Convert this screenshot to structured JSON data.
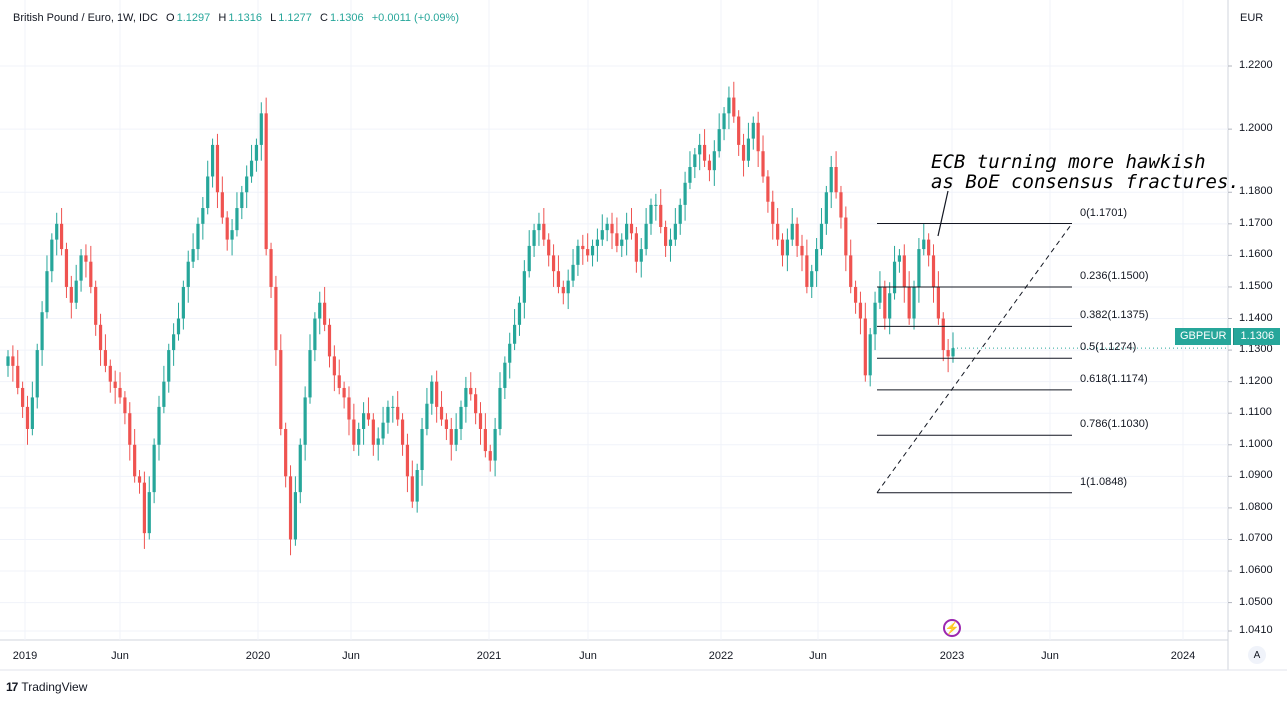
{
  "legend": {
    "symbol_line": "British Pound / Euro, 1W, IDC",
    "open_label": "O",
    "open": "1.1297",
    "high_label": "H",
    "high": "1.1316",
    "low_label": "L",
    "low": "1.1277",
    "close_label": "C",
    "close": "1.1306",
    "change": "+0.0011 (+0.09%)"
  },
  "currency": "EUR",
  "annotation": {
    "line1": "ECB turning more hawkish",
    "line2": "as BoE consensus fractures."
  },
  "price_badge": {
    "symbol": "GBPEUR",
    "price": "1.1306"
  },
  "brand": "TradingView",
  "auto_label": "A",
  "colors": {
    "up": "#26a69a",
    "down": "#ef5350",
    "event": "#9c27b0"
  },
  "icons": {
    "event": "lightning-bolt-icon",
    "brand": "tradingview-logo-icon"
  },
  "chart_data": {
    "type": "candlestick",
    "title": "British Pound / Euro, 1W, IDC",
    "ylabel": "EUR",
    "ylim": [
      1.038,
      1.225
    ],
    "y_ticks": [
      "1.2200",
      "1.2000",
      "1.1800",
      "1.1700",
      "1.1600",
      "1.1500",
      "1.1400",
      "1.1300",
      "1.1200",
      "1.1100",
      "1.1000",
      "1.0900",
      "1.0800",
      "1.0700",
      "1.0600",
      "1.0500",
      "1.0410"
    ],
    "x_ticks": [
      "2019",
      "Jun",
      "2020",
      "Jun",
      "2021",
      "Jun",
      "2022",
      "Jun",
      "2023",
      "Jun",
      "2024"
    ],
    "last": {
      "open": 1.1297,
      "high": 1.1316,
      "low": 1.1277,
      "close": 1.1306
    },
    "fibonacci": [
      {
        "label": "0(1.1701)",
        "price": 1.1701
      },
      {
        "label": "0.236(1.1500)",
        "price": 1.15
      },
      {
        "label": "0.382(1.1375)",
        "price": 1.1375
      },
      {
        "label": "0.5(1.1274)",
        "price": 1.1274
      },
      {
        "label": "0.618(1.1174)",
        "price": 1.1174
      },
      {
        "label": "0.786(1.1030)",
        "price": 1.103
      },
      {
        "label": "1(1.0848)",
        "price": 1.0848
      }
    ],
    "price_path": [
      1.128,
      1.125,
      1.118,
      1.112,
      1.105,
      1.115,
      1.13,
      1.142,
      1.155,
      1.165,
      1.17,
      1.162,
      1.15,
      1.145,
      1.152,
      1.16,
      1.158,
      1.15,
      1.138,
      1.13,
      1.125,
      1.12,
      1.118,
      1.115,
      1.11,
      1.1,
      1.09,
      1.088,
      1.072,
      1.085,
      1.1,
      1.112,
      1.12,
      1.13,
      1.135,
      1.14,
      1.15,
      1.158,
      1.162,
      1.17,
      1.175,
      1.185,
      1.195,
      1.18,
      1.172,
      1.165,
      1.168,
      1.175,
      1.18,
      1.185,
      1.19,
      1.195,
      1.205,
      1.162,
      1.15,
      1.13,
      1.105,
      1.09,
      1.07,
      1.085,
      1.1,
      1.115,
      1.13,
      1.14,
      1.145,
      1.138,
      1.128,
      1.122,
      1.118,
      1.115,
      1.108,
      1.1,
      1.105,
      1.11,
      1.108,
      1.1,
      1.102,
      1.107,
      1.112,
      1.112,
      1.108,
      1.1,
      1.09,
      1.082,
      1.092,
      1.105,
      1.113,
      1.12,
      1.112,
      1.108,
      1.105,
      1.1,
      1.105,
      1.112,
      1.118,
      1.116,
      1.11,
      1.105,
      1.098,
      1.095,
      1.105,
      1.118,
      1.126,
      1.132,
      1.138,
      1.145,
      1.155,
      1.163,
      1.168,
      1.17,
      1.165,
      1.16,
      1.155,
      1.15,
      1.148,
      1.152,
      1.157,
      1.163,
      1.162,
      1.16,
      1.163,
      1.165,
      1.168,
      1.17,
      1.167,
      1.163,
      1.165,
      1.17,
      1.167,
      1.158,
      1.162,
      1.17,
      1.176,
      1.176,
      1.169,
      1.163,
      1.165,
      1.17,
      1.176,
      1.183,
      1.188,
      1.192,
      1.195,
      1.19,
      1.187,
      1.193,
      1.2,
      1.205,
      1.21,
      1.204,
      1.195,
      1.19,
      1.197,
      1.202,
      1.193,
      1.185,
      1.177,
      1.17,
      1.165,
      1.16,
      1.165,
      1.17,
      1.163,
      1.16,
      1.15,
      1.155,
      1.162,
      1.17,
      1.18,
      1.188,
      1.18,
      1.172,
      1.16,
      1.15,
      1.145,
      1.14,
      1.122,
      1.135,
      1.145,
      1.15,
      1.14,
      1.148,
      1.158,
      1.16,
      1.15,
      1.14,
      1.15,
      1.162,
      1.165,
      1.16,
      1.15,
      1.14,
      1.13,
      1.128,
      1.1306
    ]
  }
}
